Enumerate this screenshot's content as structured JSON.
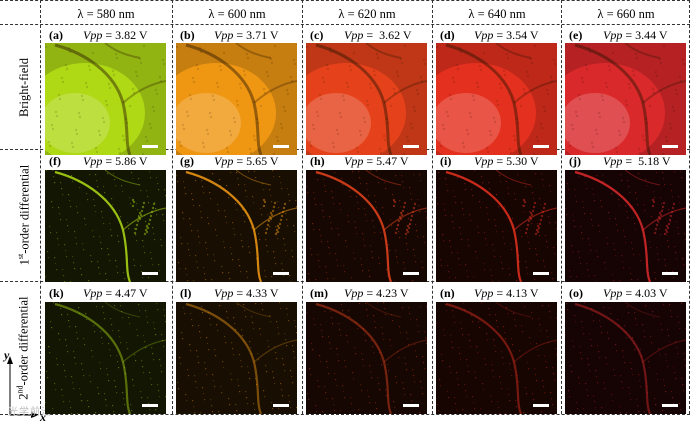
{
  "columns": [
    {
      "label": "λ = 580 nm",
      "color": "#b2dc16"
    },
    {
      "label": "λ = 600 nm",
      "color": "#f39a14"
    },
    {
      "label": "λ = 620 nm",
      "color": "#e9441c"
    },
    {
      "label": "λ = 640 nm",
      "color": "#e8311f"
    },
    {
      "label": "λ = 660 nm",
      "color": "#de2a2c"
    }
  ],
  "rows": [
    {
      "label": "Bright-field",
      "panels": [
        {
          "tag": "(a)",
          "vpp_name": "Vpp",
          "vpp_value": " = 3.82 V"
        },
        {
          "tag": "(b)",
          "vpp_name": "Vpp",
          "vpp_value": " = 3.71 V"
        },
        {
          "tag": "(c)",
          "vpp_name": "Vpp",
          "vpp_value": " =  3.62 V"
        },
        {
          "tag": "(d)",
          "vpp_name": "Vpp",
          "vpp_value": " = 3.54 V"
        },
        {
          "tag": "(e)",
          "vpp_name": "Vpp",
          "vpp_value": " = 3.44 V"
        }
      ]
    },
    {
      "label_prefix": "1",
      "label_sup": "st",
      "label_suffix": "-order differential",
      "panels": [
        {
          "tag": "(f)",
          "vpp_name": "Vpp",
          "vpp_value": " = 5.86 V"
        },
        {
          "tag": "(g)",
          "vpp_name": "Vpp",
          "vpp_value": " = 5.65 V"
        },
        {
          "tag": "(h)",
          "vpp_name": "Vpp",
          "vpp_value": " = 5.47 V"
        },
        {
          "tag": "(i)",
          "vpp_name": "Vpp",
          "vpp_value": " = 5.30 V"
        },
        {
          "tag": "(j)",
          "vpp_name": "Vpp",
          "vpp_value": " =  5.18 V"
        }
      ]
    },
    {
      "label_prefix": "2",
      "label_sup": "nd",
      "label_suffix": "-order differential",
      "panels": [
        {
          "tag": "(k)",
          "vpp_name": "Vpp",
          "vpp_value": " = 4.47 V"
        },
        {
          "tag": "(l)",
          "vpp_name": "Vpp",
          "vpp_value": " = 4.33 V"
        },
        {
          "tag": "(m)",
          "vpp_name": "Vpp",
          "vpp_value": " = 4.23 V"
        },
        {
          "tag": "(n)",
          "vpp_name": "Vpp",
          "vpp_value": " = 4.13 V"
        },
        {
          "tag": "(o)",
          "vpp_name": "Vpp",
          "vpp_value": " = 4.03 V"
        }
      ]
    }
  ],
  "axes": {
    "y": "y",
    "x": "x"
  },
  "watermark": "光学前沿"
}
